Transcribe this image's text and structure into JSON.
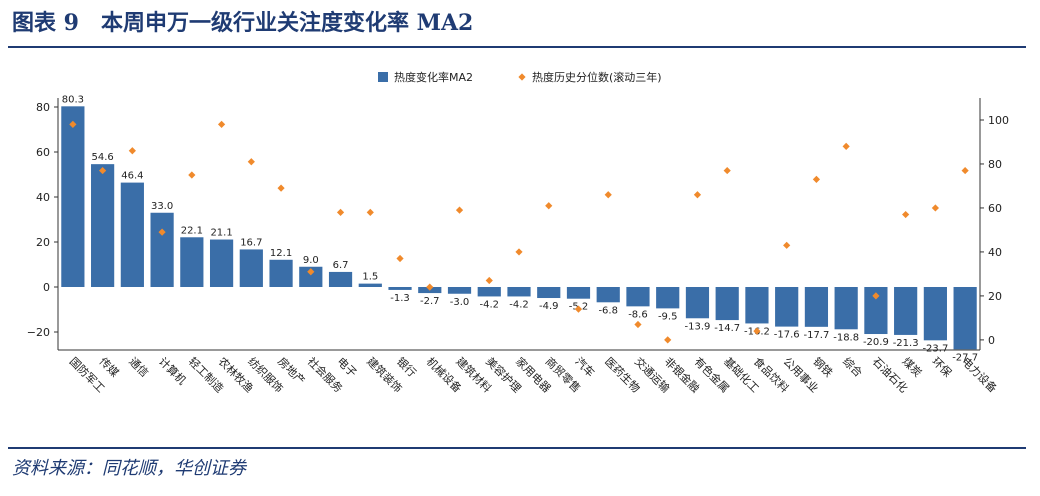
{
  "header": {
    "figure_no": "图表 9",
    "title": "本周申万一级行业关注度变化率 MA2"
  },
  "footer": {
    "source": "资料来源：同花顺，华创证券"
  },
  "colors": {
    "bar": "#3a6ea8",
    "marker": "#f08a2c",
    "axis": "#333333",
    "rule": "#1f3b73"
  },
  "chart_data": {
    "type": "bar",
    "title": "",
    "categories": [
      "国防军工",
      "传媒",
      "通信",
      "计算机",
      "轻工制造",
      "农林牧渔",
      "纺织服饰",
      "房地产",
      "社会服务",
      "电子",
      "建筑装饰",
      "银行",
      "机械设备",
      "建筑材料",
      "美容护理",
      "家用电器",
      "商贸零售",
      "汽车",
      "医药生物",
      "交通运输",
      "非银金融",
      "有色金属",
      "基础化工",
      "食品饮料",
      "公用事业",
      "钢铁",
      "综合",
      "石油石化",
      "煤炭",
      "环保",
      "电力设备"
    ],
    "series": [
      {
        "name": "热度变化率MA2",
        "type": "bar",
        "axis": "left",
        "values": [
          80.3,
          54.6,
          46.4,
          33.0,
          22.1,
          21.1,
          16.7,
          12.1,
          9.0,
          6.7,
          1.5,
          -1.3,
          -2.7,
          -3.0,
          -4.2,
          -4.2,
          -4.9,
          -5.2,
          -6.8,
          -8.6,
          -9.5,
          -13.9,
          -14.7,
          -16.2,
          -17.6,
          -17.7,
          -18.8,
          -20.9,
          -21.3,
          -23.7,
          -27.7
        ],
        "labels": [
          "80.3",
          "54.6",
          "46.4",
          "33.0",
          "22.1",
          "21.1",
          "16.7",
          "12.1",
          "9.0",
          "6.7",
          "1.5",
          "-1.3",
          "-2.7",
          "-3.0",
          "-4.2",
          "-4.2",
          "-4.9",
          "-5.2",
          "-6.8",
          "-8.6",
          "-9.5",
          "-13.9",
          "-14.7",
          "-16.2",
          "-17.6",
          "-17.7",
          "-18.8",
          "-20.9",
          "-21.3",
          "-23.7",
          "-27.7"
        ]
      },
      {
        "name": "热度历史分位数(滚动三年)",
        "type": "scatter",
        "axis": "right",
        "values": [
          98,
          77,
          86,
          49,
          75,
          98,
          81,
          69,
          31,
          58,
          58,
          37,
          24,
          59,
          27,
          40,
          61,
          14,
          66,
          7,
          0,
          66,
          77,
          4,
          43,
          73,
          88,
          20,
          57,
          60,
          77
        ]
      }
    ],
    "left_axis": {
      "ylim": [
        -28,
        84
      ],
      "ticks": [
        -20,
        0,
        20,
        40,
        60,
        80
      ],
      "tick_labels": [
        "−20",
        "0",
        "20",
        "40",
        "60",
        "80"
      ]
    },
    "right_axis": {
      "ylim": [
        -4.6,
        110
      ],
      "ticks": [
        0,
        20,
        40,
        60,
        80,
        100
      ],
      "tick_labels": [
        "0",
        "20",
        "40",
        "60",
        "80",
        "100"
      ]
    },
    "legend": {
      "position": "top-center"
    },
    "grid": false
  }
}
